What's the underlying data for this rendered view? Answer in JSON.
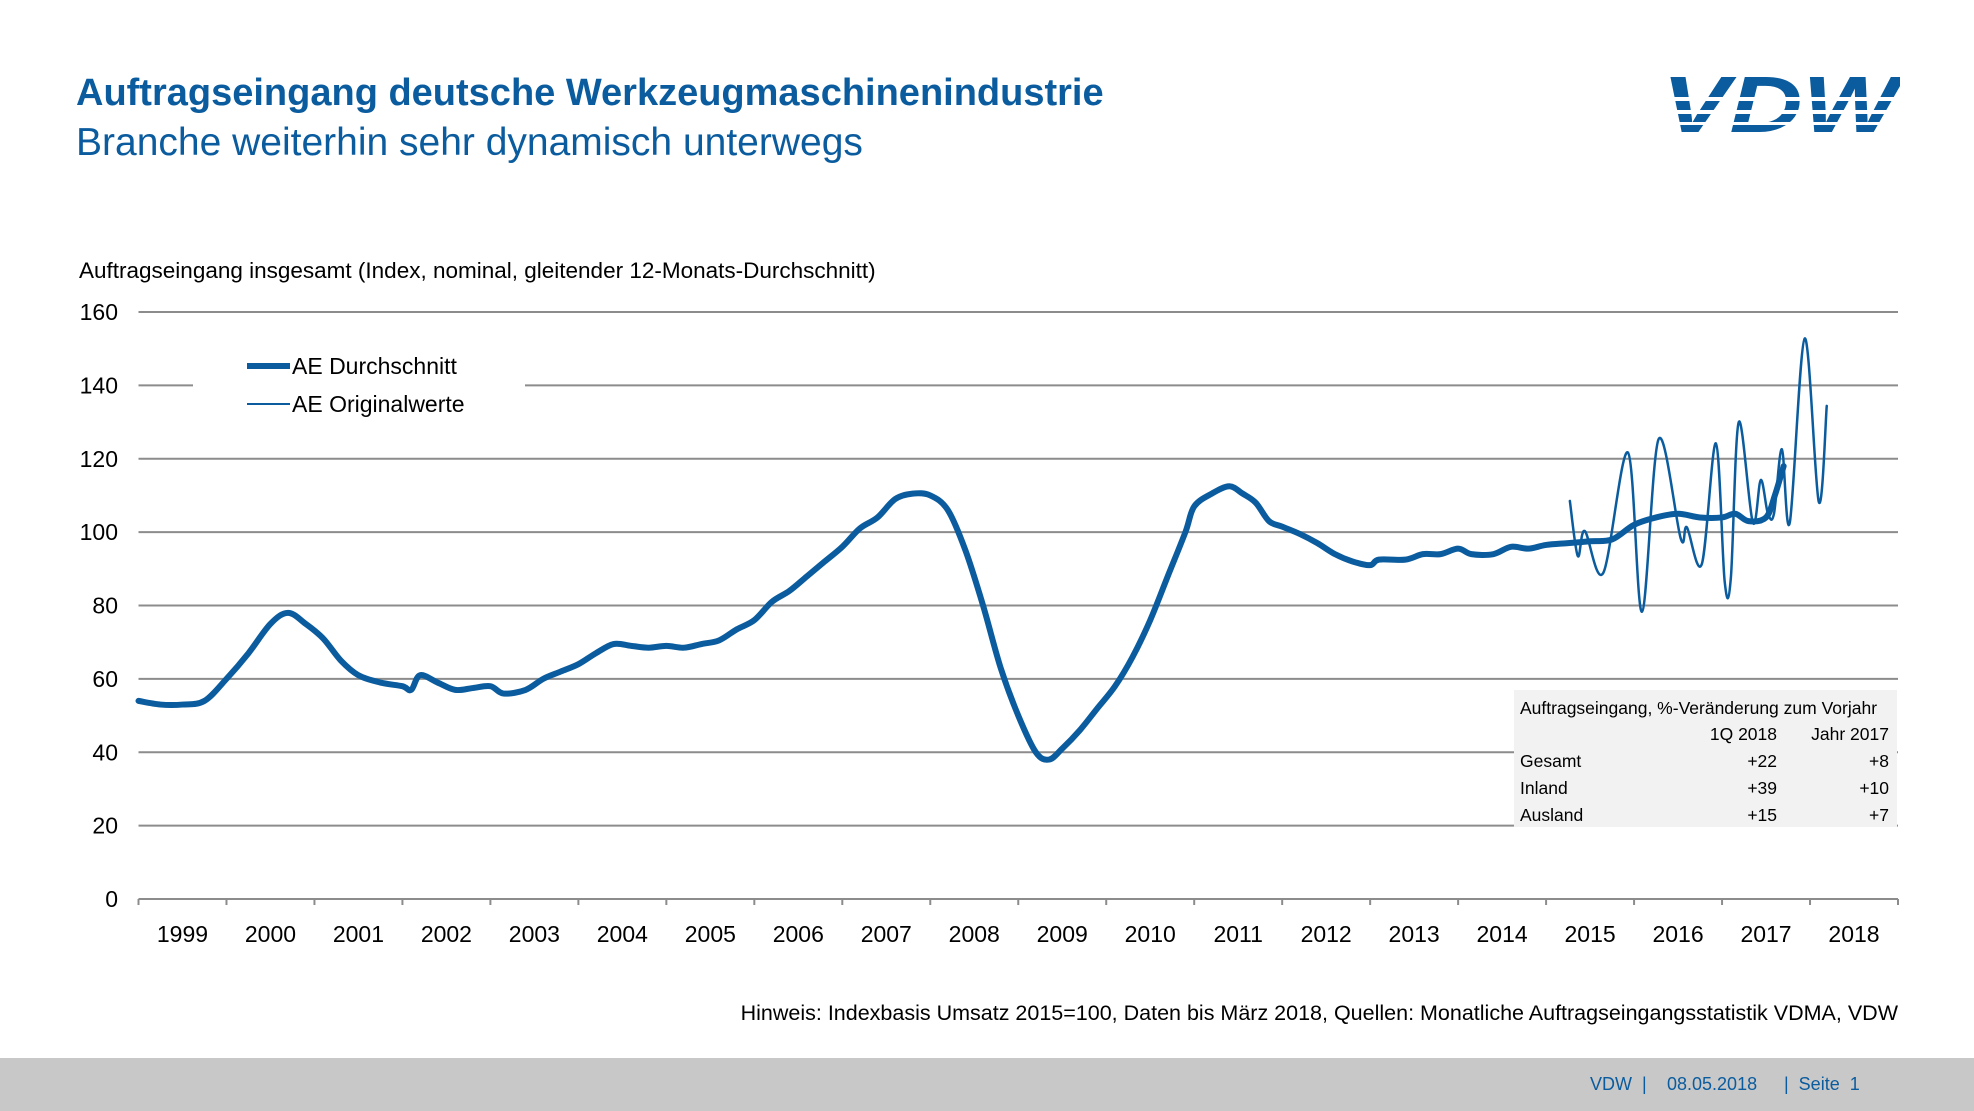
{
  "header": {
    "title": "Auftragseingang deutsche Werkzeugmaschinenindustrie",
    "subtitle": "Branche weiterhin sehr dynamisch unterwegs",
    "logo_text": "VDW"
  },
  "colors": {
    "brand": "#0b5c9e",
    "grid": "#8c8c8c",
    "footer_bg": "#c8c8c8",
    "table_bg": "#f2f2f2"
  },
  "chart_data": {
    "type": "line",
    "title": "",
    "ylabel": "Auftragseingang insgesamt (Index, nominal, gleitender 12-Monats-Durchschnitt)",
    "xlabel": "",
    "ylim": [
      0,
      160
    ],
    "yticks": [
      "0",
      "20",
      "40",
      "60",
      "80",
      "100",
      "120",
      "140",
      "160"
    ],
    "xlim": [
      1999,
      2019
    ],
    "xticks": [
      "1999",
      "2000",
      "2001",
      "2002",
      "2003",
      "2004",
      "2005",
      "2006",
      "2007",
      "2008",
      "2009",
      "2010",
      "2011",
      "2012",
      "2013",
      "2014",
      "2015",
      "2016",
      "2017",
      "2018"
    ],
    "grid": true,
    "legend_position": "top-left",
    "series": [
      {
        "name": "AE Durchschnitt",
        "style": "thick",
        "x": [
          1999.0,
          1999.25,
          1999.5,
          1999.75,
          2000.0,
          2000.25,
          2000.5,
          2000.7,
          2000.9,
          2001.1,
          2001.3,
          2001.5,
          2001.75,
          2002.0,
          2002.1,
          2002.2,
          2002.4,
          2002.6,
          2002.8,
          2003.0,
          2003.15,
          2003.4,
          2003.6,
          2003.8,
          2004.0,
          2004.2,
          2004.4,
          2004.6,
          2004.8,
          2005.0,
          2005.2,
          2005.4,
          2005.6,
          2005.8,
          2006.0,
          2006.2,
          2006.4,
          2006.6,
          2006.8,
          2007.0,
          2007.2,
          2007.4,
          2007.6,
          2007.8,
          2008.0,
          2008.2,
          2008.4,
          2008.6,
          2008.8,
          2009.0,
          2009.2,
          2009.35,
          2009.5,
          2009.7,
          2009.9,
          2010.1,
          2010.3,
          2010.5,
          2010.7,
          2010.9,
          2011.0,
          2011.2,
          2011.4,
          2011.55,
          2011.7,
          2011.85,
          2012.0,
          2012.2,
          2012.4,
          2012.6,
          2012.8,
          2013.0,
          2013.1,
          2013.4,
          2013.6,
          2013.8,
          2014.0,
          2014.15,
          2014.4,
          2014.6,
          2014.8,
          2015.0,
          2015.25,
          2015.5,
          2015.75,
          2016.0,
          2016.25,
          2016.5,
          2016.75,
          2017.0,
          2017.15,
          2017.3,
          2017.5,
          2017.6,
          2017.7
        ],
        "values": [
          54,
          53,
          53,
          54,
          60,
          67,
          75,
          78,
          75,
          71,
          65,
          61,
          59,
          58,
          57,
          61,
          59,
          57,
          57.5,
          58,
          56,
          57,
          60,
          62,
          64,
          67,
          69.5,
          69,
          68.5,
          69,
          68.5,
          69.5,
          70.5,
          73.5,
          76,
          81,
          84,
          88,
          92,
          96,
          101,
          104,
          109,
          110.5,
          110,
          106,
          95,
          80,
          63,
          50,
          40,
          38,
          41,
          46,
          52,
          58,
          66,
          76,
          88,
          100,
          107,
          110.5,
          112.5,
          110.5,
          108,
          103,
          101.5,
          99.5,
          97,
          94,
          92,
          91,
          92.5,
          92.5,
          94,
          94,
          95.5,
          94,
          94,
          96,
          95.5,
          96.5,
          97,
          97.5,
          98,
          102,
          104,
          105,
          104,
          104,
          105,
          103,
          104,
          110,
          118
        ]
      },
      {
        "name": "AE Originalwerte",
        "style": "thin",
        "x": [
          2015.27,
          2015.36,
          2015.44,
          2015.65,
          2015.93,
          2016.09,
          2016.28,
          2016.53,
          2016.6,
          2016.77,
          2016.93,
          2017.03,
          2017.1,
          2017.19,
          2017.35,
          2017.44,
          2017.52,
          2017.59,
          2017.68,
          2017.77,
          2017.94,
          2018.1,
          2018.19
        ],
        "values": [
          108.5,
          93.5,
          100.3,
          88.9,
          121.7,
          78.3,
          125.4,
          98.3,
          101.3,
          91.3,
          124.2,
          86.5,
          87.5,
          130,
          102.6,
          114.2,
          105.2,
          105,
          122.6,
          102.6,
          152.8,
          108.2,
          134.4
        ]
      }
    ]
  },
  "summary_table": {
    "title": "Auftragseingang, %-Veränderung zum Vorjahr",
    "columns": [
      "",
      "1Q 2018",
      "Jahr 2017"
    ],
    "rows": [
      {
        "label": "Gesamt",
        "q1_2018": "+22",
        "year_2017": "+8"
      },
      {
        "label": "Inland",
        "q1_2018": "+39",
        "year_2017": "+10"
      },
      {
        "label": "Ausland",
        "q1_2018": "+15",
        "year_2017": "+7"
      }
    ]
  },
  "note": "Hinweis: Indexbasis Umsatz 2015=100, Daten bis März 2018, Quellen: Monatliche Auftragseingangsstatistik VDMA, VDW",
  "footer": {
    "org": "VDW  |",
    "date": "08.05.2018",
    "page": "|  Seite  1"
  }
}
